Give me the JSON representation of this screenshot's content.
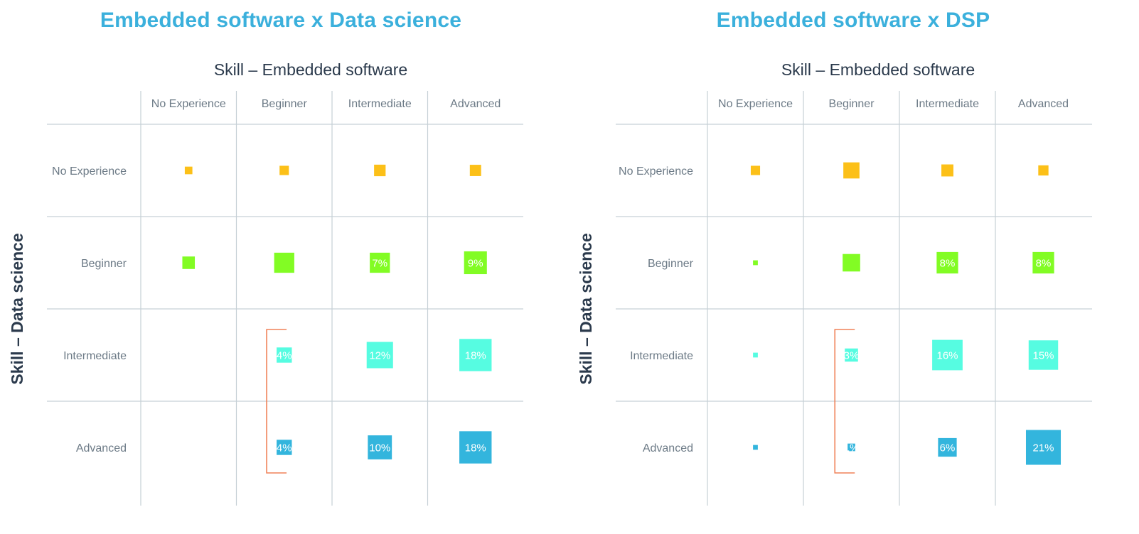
{
  "colors": {
    "title": "#3bb0dc",
    "axis_title": "#2b3a4c",
    "tick_label": "#6c7a86",
    "grid": "#c6d0d6",
    "bracket": "#f08258",
    "rows": [
      "#fcc018",
      "#82fc24",
      "#56fce1",
      "#33b5dd"
    ]
  },
  "chart_data": [
    {
      "type": "heatmap",
      "title": "Embedded software x Data science",
      "xlabel": "Skill – Embedded software",
      "ylabel": "Skill – Data science",
      "x_categories": [
        "No Experience",
        "Beginner",
        "Intermediate",
        "Advanced"
      ],
      "y_categories": [
        "No Experience",
        "Beginner",
        "Intermediate",
        "Advanced"
      ],
      "encoding": "square area proportional to share of respondents",
      "values": [
        [
          1,
          1.5,
          2.3,
          2.2
        ],
        [
          2.7,
          7,
          7,
          9
        ],
        [
          null,
          4,
          12,
          18
        ],
        [
          null,
          4,
          10,
          18
        ]
      ],
      "labels": [
        [
          "",
          "",
          "",
          ""
        ],
        [
          "",
          "",
          "7%",
          "9%"
        ],
        [
          "",
          "4%",
          "12%",
          "18%"
        ],
        [
          "",
          "4%",
          "10%",
          "18%"
        ]
      ],
      "bracket": {
        "column": "Beginner",
        "rows": [
          "Intermediate",
          "Advanced"
        ]
      }
    },
    {
      "type": "heatmap",
      "title": "Embedded software x DSP",
      "xlabel": "Skill – Embedded software",
      "ylabel": "Skill – Data science",
      "x_categories": [
        "No Experience",
        "Beginner",
        "Intermediate",
        "Advanced"
      ],
      "y_categories": [
        "No Experience",
        "Beginner",
        "Intermediate",
        "Advanced"
      ],
      "encoding": "square area proportional to share of respondents",
      "values": [
        [
          1.5,
          4.5,
          2.5,
          1.8
        ],
        [
          0.4,
          5.3,
          8,
          8
        ],
        [
          0.4,
          3,
          16,
          15
        ],
        [
          0.4,
          1,
          6,
          21
        ]
      ],
      "labels": [
        [
          "",
          "",
          "",
          ""
        ],
        [
          "",
          "",
          "8%",
          "8%"
        ],
        [
          "",
          "3%",
          "16%",
          "15%"
        ],
        [
          "",
          "1%",
          "6%",
          "21%"
        ]
      ],
      "bracket": {
        "column": "Beginner",
        "rows": [
          "Intermediate",
          "Advanced"
        ]
      }
    }
  ]
}
